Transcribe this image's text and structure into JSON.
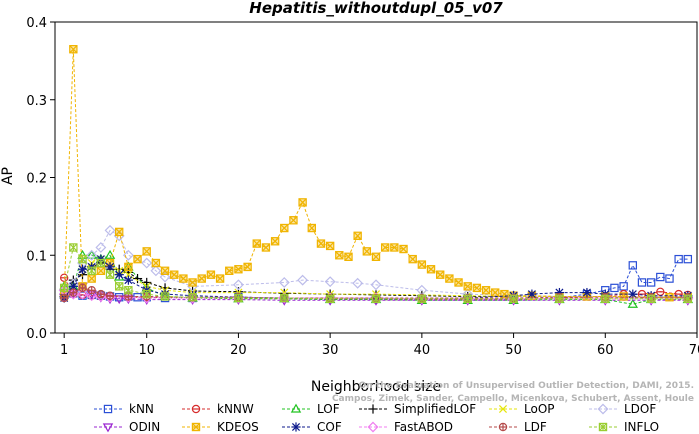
{
  "chart_data": {
    "type": "line",
    "title": "Hepatitis_withoutdupl_05_v07",
    "xlabel": "Neighborhood size",
    "ylabel": "AP",
    "xlim": [
      0,
      70
    ],
    "ylim": [
      0,
      0.4
    ],
    "x_ticks": [
      "1",
      "10",
      "20",
      "30",
      "40",
      "50",
      "60",
      "70"
    ],
    "y_ticks": [
      "0.0",
      "0.1",
      "0.2",
      "0.3",
      "0.4"
    ],
    "grid": false,
    "legend_position": "bottom",
    "credit": [
      "Campos, Zimek, Sander, Campello, Micenkova, Schubert, Assent, Houle",
      "On the Evaluation of Unsupervised Outlier Detection, DAMI, 2015."
    ],
    "series": [
      {
        "name": "kNN",
        "color": "#2b4fd6",
        "marker": "square",
        "x": [
          1,
          2,
          3,
          4,
          5,
          6,
          7,
          8,
          9,
          10,
          12,
          15,
          20,
          25,
          30,
          35,
          40,
          45,
          50,
          55,
          58,
          60,
          61,
          62,
          63,
          64,
          65,
          66,
          67,
          68,
          69
        ],
        "y": [
          0.05,
          0.051,
          0.048,
          0.049,
          0.048,
          0.047,
          0.046,
          0.047,
          0.046,
          0.046,
          0.045,
          0.045,
          0.046,
          0.045,
          0.045,
          0.044,
          0.044,
          0.043,
          0.043,
          0.045,
          0.05,
          0.055,
          0.058,
          0.06,
          0.087,
          0.065,
          0.065,
          0.072,
          0.07,
          0.095,
          0.095
        ]
      },
      {
        "name": "kNNW",
        "color": "#d62b2b",
        "marker": "circle",
        "x": [
          1,
          2,
          3,
          4,
          5,
          6,
          8,
          10,
          15,
          20,
          25,
          30,
          35,
          40,
          45,
          50,
          55,
          60,
          62,
          64,
          66,
          68,
          69
        ],
        "y": [
          0.071,
          0.05,
          0.049,
          0.048,
          0.047,
          0.047,
          0.046,
          0.046,
          0.045,
          0.045,
          0.044,
          0.044,
          0.043,
          0.043,
          0.043,
          0.043,
          0.045,
          0.047,
          0.05,
          0.05,
          0.053,
          0.05,
          0.049
        ]
      },
      {
        "name": "LOF",
        "color": "#22c322",
        "marker": "triangle",
        "x": [
          1,
          2,
          3,
          4,
          5,
          6,
          7,
          8,
          10,
          12,
          15,
          20,
          25,
          30,
          35,
          40,
          45,
          50,
          55,
          60,
          63,
          65,
          69
        ],
        "y": [
          0.06,
          0.06,
          0.1,
          0.1,
          0.095,
          0.1,
          0.072,
          0.085,
          0.058,
          0.047,
          0.045,
          0.044,
          0.044,
          0.043,
          0.043,
          0.042,
          0.042,
          0.042,
          0.043,
          0.043,
          0.037,
          0.043,
          0.043
        ]
      },
      {
        "name": "SimplifiedLOF",
        "color": "#000000",
        "marker": "plus",
        "x": [
          1,
          2,
          3,
          4,
          5,
          6,
          7,
          8,
          9,
          10,
          12,
          15,
          20,
          25,
          30,
          35,
          40,
          45,
          50,
          55,
          60,
          65,
          69
        ],
        "y": [
          0.047,
          0.068,
          0.075,
          0.085,
          0.09,
          0.082,
          0.082,
          0.078,
          0.07,
          0.065,
          0.058,
          0.054,
          0.053,
          0.051,
          0.05,
          0.049,
          0.048,
          0.047,
          0.047,
          0.047,
          0.047,
          0.046,
          0.046
        ]
      },
      {
        "name": "LoOP",
        "color": "#e6e60a",
        "marker": "x",
        "x": [
          1,
          2,
          3,
          4,
          5,
          6,
          7,
          8,
          10,
          12,
          15,
          20,
          25,
          30,
          35,
          40,
          45,
          50,
          55,
          60,
          65,
          69
        ],
        "y": [
          0.046,
          0.06,
          0.082,
          0.09,
          0.095,
          0.085,
          0.08,
          0.075,
          0.06,
          0.055,
          0.052,
          0.052,
          0.052,
          0.05,
          0.05,
          0.049,
          0.048,
          0.047,
          0.047,
          0.047,
          0.046,
          0.046
        ]
      },
      {
        "name": "LDOF",
        "color": "#bcbcea",
        "marker": "diamond",
        "x": [
          1,
          2,
          3,
          4,
          5,
          6,
          7,
          8,
          10,
          11,
          12,
          15,
          20,
          25,
          27,
          30,
          33,
          35,
          40,
          45,
          50,
          55,
          60,
          65,
          69
        ],
        "y": [
          0.055,
          0.063,
          0.09,
          0.1,
          0.11,
          0.132,
          0.125,
          0.1,
          0.09,
          0.08,
          0.072,
          0.06,
          0.062,
          0.065,
          0.068,
          0.066,
          0.064,
          0.062,
          0.055,
          0.05,
          0.048,
          0.047,
          0.046,
          0.046,
          0.046
        ]
      },
      {
        "name": "ODIN",
        "color": "#9a25d0",
        "marker": "triangle-down",
        "x": [
          1,
          2,
          3,
          4,
          5,
          6,
          7,
          8,
          10,
          15,
          20,
          25,
          30,
          35,
          40,
          45,
          50,
          55,
          60,
          65,
          69
        ],
        "y": [
          0.046,
          0.05,
          0.06,
          0.05,
          0.046,
          0.044,
          0.044,
          0.044,
          0.043,
          0.043,
          0.043,
          0.042,
          0.042,
          0.042,
          0.042,
          0.042,
          0.042,
          0.042,
          0.042,
          0.042,
          0.042
        ]
      },
      {
        "name": "KDEOS",
        "color": "#f0b400",
        "marker": "square-x",
        "x": [
          1,
          2,
          3,
          4,
          5,
          6,
          7,
          8,
          9,
          10,
          11,
          12,
          13,
          14,
          15,
          16,
          17,
          18,
          19,
          20,
          21,
          22,
          23,
          24,
          25,
          26,
          27,
          28,
          29,
          30,
          31,
          32,
          33,
          34,
          35,
          36,
          37,
          38,
          39,
          40,
          41,
          42,
          43,
          44,
          45,
          46,
          47,
          48,
          49,
          50,
          52,
          55,
          58,
          60,
          62,
          65,
          67,
          69
        ],
        "y": [
          0.05,
          0.365,
          0.06,
          0.07,
          0.08,
          0.09,
          0.13,
          0.085,
          0.095,
          0.105,
          0.09,
          0.08,
          0.075,
          0.07,
          0.065,
          0.07,
          0.075,
          0.07,
          0.08,
          0.082,
          0.085,
          0.115,
          0.11,
          0.118,
          0.135,
          0.145,
          0.168,
          0.135,
          0.115,
          0.112,
          0.1,
          0.098,
          0.125,
          0.105,
          0.098,
          0.11,
          0.11,
          0.108,
          0.095,
          0.088,
          0.082,
          0.075,
          0.07,
          0.065,
          0.06,
          0.058,
          0.055,
          0.052,
          0.05,
          0.048,
          0.048,
          0.047,
          0.047,
          0.047,
          0.047,
          0.046,
          0.046,
          0.046
        ]
      },
      {
        "name": "COF",
        "color": "#0d1a8c",
        "marker": "star",
        "x": [
          1,
          2,
          3,
          4,
          5,
          6,
          7,
          8,
          10,
          12,
          15,
          20,
          25,
          30,
          35,
          40,
          45,
          50,
          52,
          55,
          58,
          60,
          63,
          65,
          69
        ],
        "y": [
          0.045,
          0.06,
          0.082,
          0.085,
          0.095,
          0.085,
          0.075,
          0.068,
          0.055,
          0.05,
          0.048,
          0.046,
          0.045,
          0.044,
          0.044,
          0.044,
          0.045,
          0.048,
          0.05,
          0.052,
          0.052,
          0.05,
          0.05,
          0.048,
          0.048
        ]
      },
      {
        "name": "FastABOD",
        "color": "#f07ef0",
        "marker": "diamond",
        "x": [
          1,
          2,
          3,
          4,
          5,
          6,
          8,
          10,
          15,
          20,
          25,
          30,
          35,
          40,
          45,
          50,
          55,
          60,
          65,
          69
        ],
        "y": [
          0.055,
          0.05,
          0.05,
          0.048,
          0.047,
          0.046,
          0.046,
          0.045,
          0.045,
          0.045,
          0.045,
          0.045,
          0.045,
          0.044,
          0.044,
          0.044,
          0.044,
          0.044,
          0.044,
          0.044
        ]
      },
      {
        "name": "LDF",
        "color": "#b44a4a",
        "marker": "circle-plus",
        "x": [
          1,
          2,
          3,
          4,
          5,
          6,
          8,
          10,
          15,
          20,
          25,
          30,
          35,
          40,
          45,
          50,
          55,
          60,
          65,
          69
        ],
        "y": [
          0.045,
          0.052,
          0.058,
          0.055,
          0.05,
          0.048,
          0.047,
          0.047,
          0.046,
          0.046,
          0.045,
          0.045,
          0.045,
          0.045,
          0.045,
          0.045,
          0.046,
          0.046,
          0.046,
          0.046
        ]
      },
      {
        "name": "INFLO",
        "color": "#9acd32",
        "marker": "square-star",
        "x": [
          1,
          2,
          3,
          4,
          5,
          6,
          7,
          8,
          10,
          12,
          15,
          20,
          25,
          30,
          35,
          40,
          45,
          50,
          55,
          60,
          65,
          69
        ],
        "y": [
          0.058,
          0.11,
          0.095,
          0.08,
          0.09,
          0.075,
          0.06,
          0.055,
          0.05,
          0.047,
          0.046,
          0.045,
          0.045,
          0.044,
          0.044,
          0.044,
          0.044,
          0.044,
          0.044,
          0.044,
          0.044,
          0.044
        ]
      }
    ]
  }
}
